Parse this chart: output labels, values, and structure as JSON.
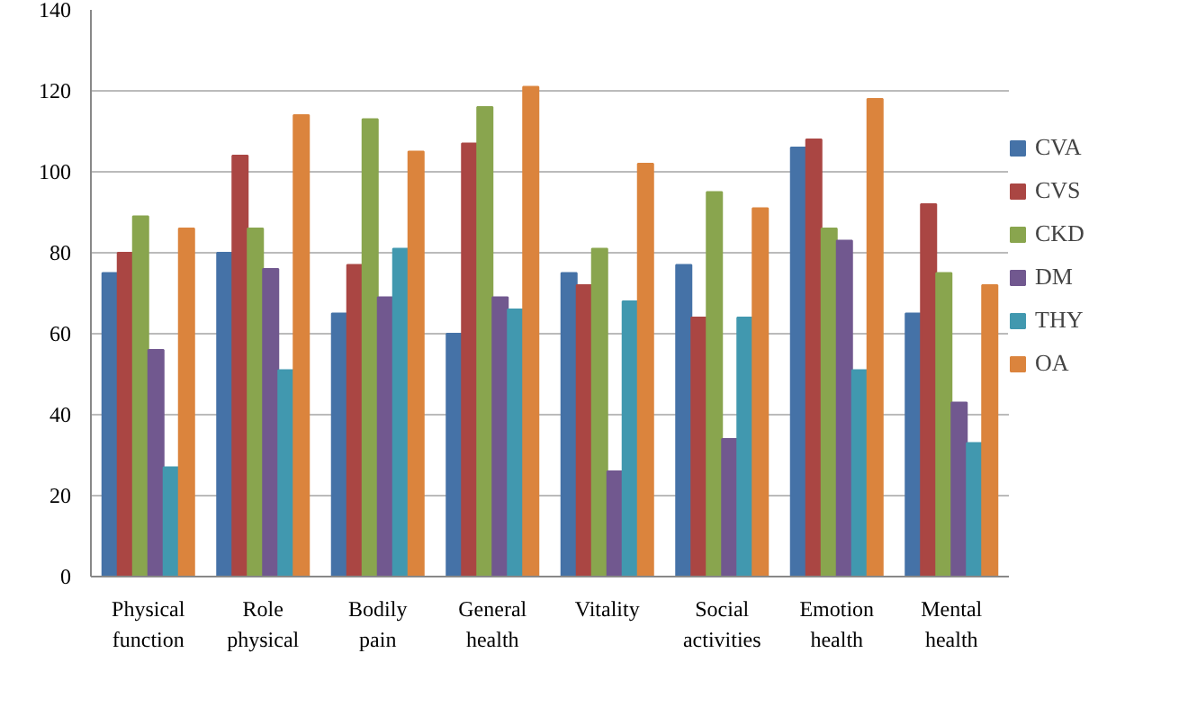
{
  "chart_data": {
    "type": "bar",
    "categories": [
      "Physical function",
      "Role physical",
      "Bodily pain",
      "General health",
      "Vitality",
      "Social activities",
      "Emotion health",
      "Mental health"
    ],
    "series": [
      {
        "name": "CVA",
        "color": "#4572a7",
        "values": [
          75,
          80,
          65,
          60,
          75,
          77,
          106,
          65
        ]
      },
      {
        "name": "CVS",
        "color": "#aa4643",
        "values": [
          80,
          104,
          77,
          107,
          72,
          64,
          108,
          92
        ]
      },
      {
        "name": "CKD",
        "color": "#89a54e",
        "values": [
          89,
          86,
          113,
          116,
          81,
          95,
          86,
          75
        ]
      },
      {
        "name": "DM",
        "color": "#71588f",
        "values": [
          56,
          76,
          69,
          69,
          26,
          34,
          83,
          43
        ]
      },
      {
        "name": "THY",
        "color": "#4198af",
        "values": [
          27,
          51,
          81,
          66,
          68,
          64,
          51,
          33
        ]
      },
      {
        "name": "OA",
        "color": "#db843d",
        "values": [
          86,
          114,
          105,
          121,
          102,
          91,
          118,
          72
        ]
      }
    ],
    "ylim": [
      0,
      140
    ],
    "yticks": [
      0,
      20,
      40,
      60,
      80,
      100,
      120,
      140
    ],
    "grid": "y",
    "legend": "right"
  }
}
